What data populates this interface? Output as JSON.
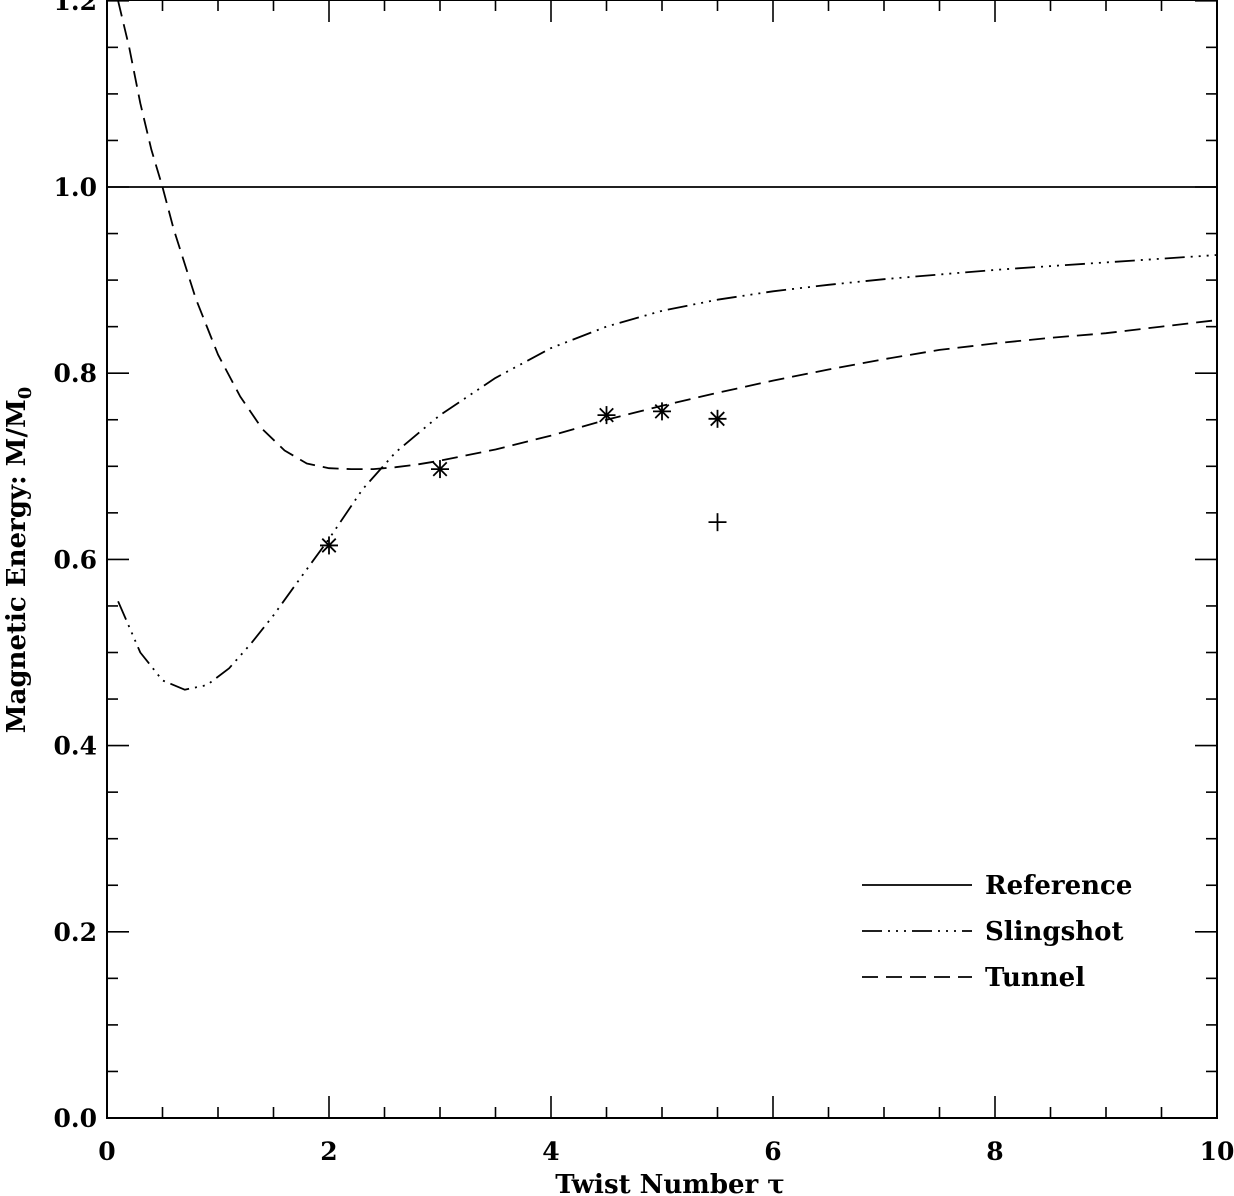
{
  "chart_data": {
    "type": "line",
    "title": "",
    "xlabel": "Twist Number τ",
    "ylabel_main": "Magnetic Energy: M/M",
    "ylabel_subscript": "0",
    "xlim": [
      0,
      10
    ],
    "ylim": [
      0,
      1.2
    ],
    "x_ticks": [
      "0",
      "2",
      "4",
      "6",
      "8",
      "10"
    ],
    "y_ticks": [
      "0.0",
      "0.2",
      "0.4",
      "0.6",
      "0.8",
      "1.0",
      "1.2"
    ],
    "grid": false,
    "legend_position": "bottom-right",
    "series": [
      {
        "name": "Reference",
        "style": "solid",
        "x": [
          0,
          10
        ],
        "y": [
          1.0,
          1.0
        ]
      },
      {
        "name": "Slingshot",
        "style": "dash-dot-dot-dot",
        "x": [
          0.1,
          0.3,
          0.5,
          0.7,
          0.9,
          1.1,
          1.3,
          1.5,
          1.7,
          2.0,
          2.3,
          2.6,
          3.0,
          3.5,
          4.0,
          4.5,
          5.0,
          5.5,
          6.0,
          6.5,
          7.0,
          7.5,
          8.0,
          8.5,
          9.0,
          9.5,
          10.0
        ],
        "y": [
          0.555,
          0.5,
          0.47,
          0.46,
          0.465,
          0.483,
          0.51,
          0.54,
          0.573,
          0.622,
          0.675,
          0.715,
          0.755,
          0.795,
          0.827,
          0.85,
          0.867,
          0.879,
          0.888,
          0.895,
          0.901,
          0.906,
          0.911,
          0.915,
          0.919,
          0.923,
          0.927
        ]
      },
      {
        "name": "Tunnel",
        "style": "dashed",
        "x": [
          0.1,
          0.2,
          0.3,
          0.4,
          0.5,
          0.6,
          0.8,
          1.0,
          1.2,
          1.4,
          1.6,
          1.8,
          2.0,
          2.2,
          2.4,
          2.6,
          2.8,
          3.0,
          3.5,
          4.0,
          4.5,
          5.0,
          5.5,
          6.0,
          6.5,
          7.0,
          7.5,
          8.0,
          8.5,
          9.0,
          9.5,
          10.0
        ],
        "y": [
          1.2,
          1.15,
          1.09,
          1.04,
          1.0,
          0.955,
          0.88,
          0.82,
          0.775,
          0.74,
          0.717,
          0.703,
          0.698,
          0.697,
          0.697,
          0.699,
          0.702,
          0.706,
          0.718,
          0.733,
          0.75,
          0.765,
          0.779,
          0.792,
          0.804,
          0.815,
          0.825,
          0.832,
          0.838,
          0.843,
          0.85,
          0.857
        ]
      }
    ],
    "markers": [
      {
        "symbol": "asterisk",
        "x": 2.0,
        "y": 0.615
      },
      {
        "symbol": "asterisk",
        "x": 3.0,
        "y": 0.697
      },
      {
        "symbol": "asterisk",
        "x": 4.5,
        "y": 0.755
      },
      {
        "symbol": "asterisk",
        "x": 5.0,
        "y": 0.759
      },
      {
        "symbol": "asterisk",
        "x": 5.5,
        "y": 0.751
      },
      {
        "symbol": "plus",
        "x": 5.5,
        "y": 0.64
      }
    ]
  }
}
